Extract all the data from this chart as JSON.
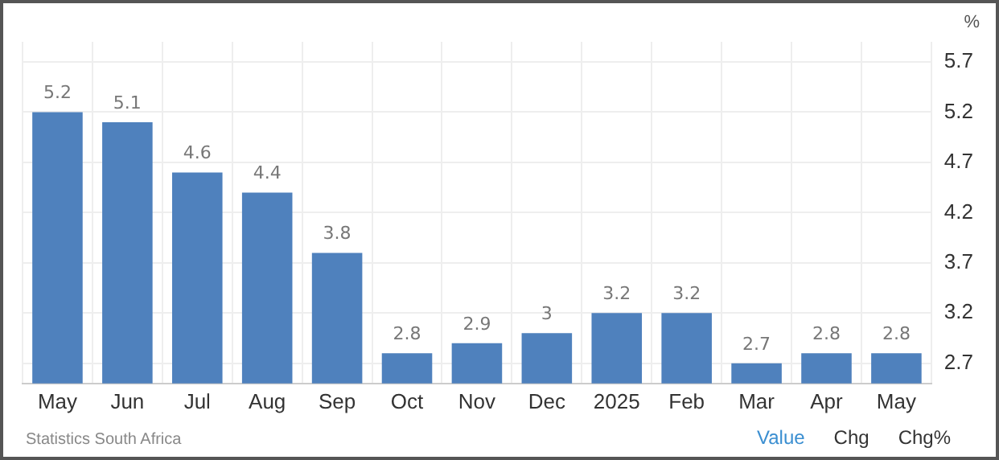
{
  "chart_data": {
    "type": "bar",
    "ylabel": "%",
    "categories": [
      "May",
      "Jun",
      "Jul",
      "Aug",
      "Sep",
      "Oct",
      "Nov",
      "Dec",
      "2025",
      "Feb",
      "Mar",
      "Apr",
      "May"
    ],
    "values": [
      5.2,
      5.1,
      4.6,
      4.4,
      3.8,
      2.8,
      2.9,
      3,
      3.2,
      3.2,
      2.7,
      2.8,
      2.8
    ],
    "color": "#4f81bd",
    "ylim": [
      2.5,
      5.9
    ],
    "yticks": [
      2.7,
      3.2,
      3.7,
      4.2,
      4.7,
      5.2,
      5.7
    ],
    "grid": true,
    "data_labels": true,
    "legend": false,
    "annotations": [
      "Statistics South Africa",
      "Value",
      "Chg",
      "Chg%"
    ]
  }
}
